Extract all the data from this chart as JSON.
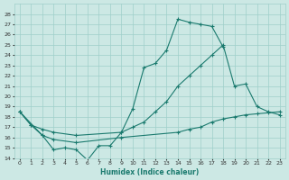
{
  "xlabel": "Humidex (Indice chaleur)",
  "bg_color": "#cce8e4",
  "grid_color": "#9fcfca",
  "line_color": "#1a7a6e",
  "ylim": [
    14,
    29
  ],
  "xlim": [
    -0.5,
    23.5
  ],
  "yticks": [
    14,
    15,
    16,
    17,
    18,
    19,
    20,
    21,
    22,
    23,
    24,
    25,
    26,
    27,
    28
  ],
  "xticks": [
    0,
    1,
    2,
    3,
    4,
    5,
    6,
    7,
    8,
    9,
    10,
    11,
    12,
    13,
    14,
    15,
    16,
    17,
    18,
    19,
    20,
    21,
    22,
    23
  ],
  "series": [
    {
      "x": [
        0,
        1,
        2,
        3,
        4,
        5,
        6,
        7,
        8,
        9,
        10,
        11,
        12,
        13,
        14,
        15,
        16,
        17,
        18
      ],
      "y": [
        18.5,
        17.2,
        16.2,
        14.8,
        15.0,
        14.8,
        13.8,
        15.2,
        15.2,
        16.5,
        18.8,
        22.8,
        23.2,
        24.5,
        27.5,
        27.2,
        27.0,
        26.8,
        24.8
      ]
    },
    {
      "x": [
        0,
        1,
        2,
        3,
        5,
        9,
        10,
        11,
        12,
        13,
        14,
        15,
        16,
        17,
        18,
        19,
        20,
        21,
        22,
        23
      ],
      "y": [
        18.5,
        17.2,
        16.8,
        16.5,
        16.2,
        16.5,
        17.0,
        17.5,
        18.5,
        19.5,
        21.0,
        22.0,
        23.0,
        24.0,
        25.0,
        21.0,
        21.2,
        19.0,
        18.5,
        18.2
      ]
    },
    {
      "x": [
        0,
        2,
        3,
        5,
        9,
        14,
        15,
        16,
        17,
        18,
        19,
        20,
        21,
        22,
        23
      ],
      "y": [
        18.5,
        16.2,
        15.8,
        15.5,
        16.0,
        16.5,
        16.8,
        17.0,
        17.5,
        17.8,
        18.0,
        18.2,
        18.3,
        18.4,
        18.5
      ]
    }
  ]
}
